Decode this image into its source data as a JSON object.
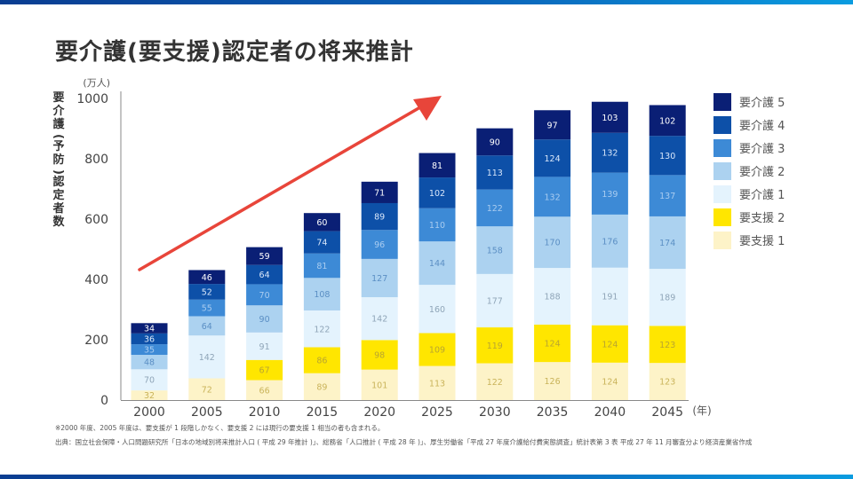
{
  "page": {
    "title": "要介護(要支援)認定者の将来推計",
    "footnote": "※2000 年度、2005 年度は、要支援が 1 段階しかなく、要支援 2 には現行の要支援 1 相当の者も含まれる。",
    "source": "出典：国立社会保障・人口問題研究所「日本の地域別将来推計人口 ( 平成 29 年推計 )」、総務省「人口推計 ( 平成 28 年 )」、厚生労働省「平成 27 年度介護給付費実態調査」統計表第 3 表 平成 27 年 11 月審査分より経済産業省作成"
  },
  "chart_data": {
    "type": "bar",
    "stacked": true,
    "title": "要介護(要支援)認定者の将来推計",
    "xlabel": "(年)",
    "ylabel": "要介護(予防)認定者数",
    "yunit": "(万人)",
    "ylim": [
      0,
      1000
    ],
    "yticks": [
      0,
      200,
      400,
      600,
      800,
      1000
    ],
    "grid": false,
    "legend_position": "right",
    "categories": [
      "2000",
      "2005",
      "2010",
      "2015",
      "2020",
      "2025",
      "2030",
      "2035",
      "2040",
      "2045"
    ],
    "series": [
      {
        "name": "要支援 1",
        "color": "#fdf3c8",
        "label_color": "#c9b35a",
        "values": [
          32,
          72,
          66,
          89,
          101,
          113,
          122,
          126,
          124,
          123
        ]
      },
      {
        "name": "要支援 2",
        "color": "#ffe600",
        "label_color": "#b9a530",
        "values": [
          0,
          0,
          67,
          86,
          98,
          109,
          119,
          124,
          124,
          123
        ]
      },
      {
        "name": "要介護 1",
        "color": "#e4f3fd",
        "label_color": "#8fa5b8",
        "values": [
          70,
          142,
          91,
          122,
          142,
          160,
          177,
          188,
          191,
          189
        ]
      },
      {
        "name": "要介護 2",
        "color": "#acd2f0",
        "label_color": "#5b8fc4",
        "values": [
          48,
          64,
          90,
          108,
          127,
          144,
          158,
          170,
          176,
          174
        ]
      },
      {
        "name": "要介護 3",
        "color": "#3d8ad6",
        "label_color": "#a9ccf0",
        "values": [
          35,
          55,
          70,
          81,
          96,
          110,
          122,
          132,
          139,
          137
        ]
      },
      {
        "name": "要介護 4",
        "color": "#0d50a8",
        "label_color": "#d9e7fa",
        "values": [
          36,
          52,
          64,
          74,
          89,
          102,
          113,
          124,
          132,
          130
        ]
      },
      {
        "name": "要介護 5",
        "color": "#0a1f75",
        "label_color": "#ffffff",
        "values": [
          34,
          46,
          59,
          60,
          71,
          81,
          90,
          97,
          103,
          102
        ]
      }
    ],
    "annotations": [
      {
        "type": "arrow",
        "description": "upward trend arrow",
        "color": "#e8453a"
      }
    ]
  }
}
